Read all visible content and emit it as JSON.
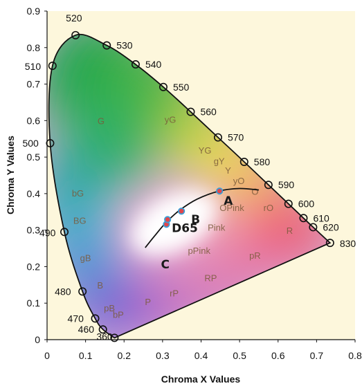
{
  "chart_data": {
    "type": "scatter",
    "title": "",
    "xlabel": "Chroma X Values",
    "ylabel": "Chroma Y Values",
    "xlim": [
      0,
      0.8
    ],
    "ylim": [
      0,
      0.9
    ],
    "x_ticks": [
      "0",
      "0.1",
      "0.2",
      "0.3",
      "0.4",
      "0.5",
      "0.6",
      "0.7",
      "0.8"
    ],
    "y_ticks": [
      "0",
      "0.1",
      "0.2",
      "0.3",
      "0.4",
      "0.5",
      "0.6",
      "0.7",
      "0.8",
      "0.9"
    ],
    "spectral_locus": [
      {
        "label": "360",
        "x": 0.175,
        "y": 0.005
      },
      {
        "label": "460",
        "x": 0.145,
        "y": 0.028
      },
      {
        "label": "470",
        "x": 0.125,
        "y": 0.058
      },
      {
        "label": "480",
        "x": 0.092,
        "y": 0.132
      },
      {
        "label": "490",
        "x": 0.045,
        "y": 0.295
      },
      {
        "label": "500",
        "x": 0.008,
        "y": 0.538
      },
      {
        "label": "510",
        "x": 0.014,
        "y": 0.75
      },
      {
        "label": "520",
        "x": 0.074,
        "y": 0.834
      },
      {
        "label": "530",
        "x": 0.155,
        "y": 0.806
      },
      {
        "label": "540",
        "x": 0.23,
        "y": 0.754
      },
      {
        "label": "550",
        "x": 0.302,
        "y": 0.692
      },
      {
        "label": "560",
        "x": 0.373,
        "y": 0.624
      },
      {
        "label": "570",
        "x": 0.444,
        "y": 0.554
      },
      {
        "label": "580",
        "x": 0.512,
        "y": 0.487
      },
      {
        "label": "590",
        "x": 0.575,
        "y": 0.424
      },
      {
        "label": "600",
        "x": 0.627,
        "y": 0.372
      },
      {
        "label": "610",
        "x": 0.666,
        "y": 0.333
      },
      {
        "label": "620",
        "x": 0.691,
        "y": 0.308
      },
      {
        "label": "830",
        "x": 0.735,
        "y": 0.265
      }
    ],
    "region_labels": [
      {
        "label": "G",
        "x": 0.14,
        "y": 0.59
      },
      {
        "label": "yG",
        "x": 0.32,
        "y": 0.594
      },
      {
        "label": "YG",
        "x": 0.41,
        "y": 0.51
      },
      {
        "label": "gY",
        "x": 0.447,
        "y": 0.48
      },
      {
        "label": "Y",
        "x": 0.47,
        "y": 0.455
      },
      {
        "label": "yO",
        "x": 0.498,
        "y": 0.426
      },
      {
        "label": "O",
        "x": 0.54,
        "y": 0.397
      },
      {
        "label": "rO",
        "x": 0.575,
        "y": 0.352
      },
      {
        "label": "OPink",
        "x": 0.48,
        "y": 0.352
      },
      {
        "label": "Pink",
        "x": 0.44,
        "y": 0.298
      },
      {
        "label": "R",
        "x": 0.63,
        "y": 0.29
      },
      {
        "label": "bG",
        "x": 0.08,
        "y": 0.392
      },
      {
        "label": "BG",
        "x": 0.085,
        "y": 0.317
      },
      {
        "label": "gB",
        "x": 0.1,
        "y": 0.215
      },
      {
        "label": "B",
        "x": 0.138,
        "y": 0.14
      },
      {
        "label": "pPink",
        "x": 0.395,
        "y": 0.235
      },
      {
        "label": "pR",
        "x": 0.54,
        "y": 0.222
      },
      {
        "label": "RP",
        "x": 0.425,
        "y": 0.16
      },
      {
        "label": "rP",
        "x": 0.33,
        "y": 0.118
      },
      {
        "label": "P",
        "x": 0.262,
        "y": 0.095
      },
      {
        "label": "bP",
        "x": 0.185,
        "y": 0.06
      },
      {
        "label": "pB",
        "x": 0.162,
        "y": 0.078
      }
    ],
    "planckian_locus": [
      {
        "x": 0.255,
        "y": 0.252
      },
      {
        "x": 0.28,
        "y": 0.285
      },
      {
        "x": 0.31,
        "y": 0.322
      },
      {
        "x": 0.345,
        "y": 0.355
      },
      {
        "x": 0.39,
        "y": 0.385
      },
      {
        "x": 0.447,
        "y": 0.407
      },
      {
        "x": 0.5,
        "y": 0.414
      },
      {
        "x": 0.55,
        "y": 0.41
      }
    ],
    "points": [
      {
        "label": "A",
        "x": 0.448,
        "y": 0.407
      },
      {
        "label": "B",
        "x": 0.349,
        "y": 0.352
      },
      {
        "label": "C",
        "x": 0.31,
        "y": 0.316
      },
      {
        "label": "D65",
        "x": 0.313,
        "y": 0.329
      }
    ],
    "grid": false,
    "legend": "none"
  }
}
